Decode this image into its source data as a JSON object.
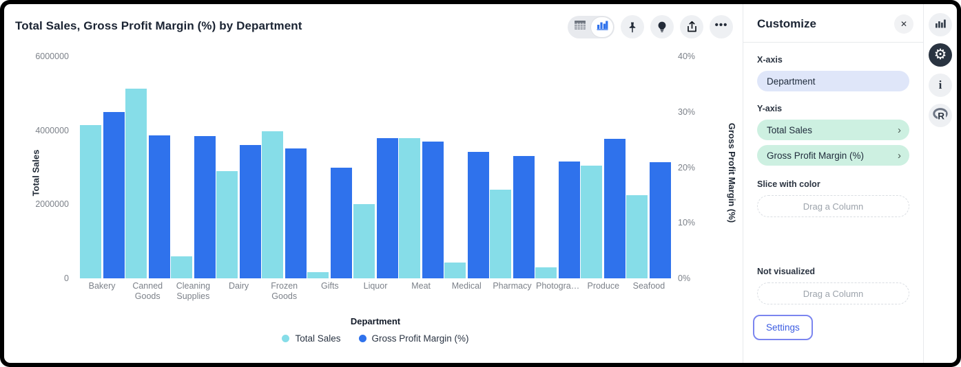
{
  "header": {
    "title": "Total Sales, Gross Profit Margin (%) by Department",
    "toolbar": {
      "toggle": [
        "table-view",
        "chart-view"
      ],
      "buttons": [
        "pin",
        "explore",
        "export",
        "more"
      ]
    }
  },
  "chart_data": {
    "type": "bar",
    "dual_axis": true,
    "title": "Total Sales, Gross Profit Margin (%) by Department",
    "xlabel": "Department",
    "categories": [
      "Bakery",
      "Canned Goods",
      "Cleaning Supplies",
      "Dairy",
      "Frozen Goods",
      "Gifts",
      "Liquor",
      "Meat",
      "Medical",
      "Pharmacy",
      "Photography",
      "Produce",
      "Seafood"
    ],
    "tick_labels": [
      "Bakery",
      "Canned Goods",
      "Cleaning Supplies",
      "Dairy",
      "Frozen Goods",
      "Gifts",
      "Liquor",
      "Meat",
      "Medical",
      "Pharmacy",
      "Photogra…",
      "Produce",
      "Seafood"
    ],
    "series": [
      {
        "name": "Total Sales",
        "axis": "left",
        "color": "#86dde8",
        "values": [
          4150000,
          5130000,
          600000,
          2900000,
          3970000,
          160000,
          2000000,
          3790000,
          420000,
          2390000,
          300000,
          3050000,
          2250000
        ]
      },
      {
        "name": "Gross Profit Margin (%)",
        "axis": "right",
        "color": "#2f72ec",
        "values": [
          30.0,
          25.8,
          25.7,
          24.0,
          23.4,
          20.0,
          25.3,
          24.6,
          22.8,
          22.1,
          21.1,
          25.1,
          20.9
        ]
      }
    ],
    "left_axis": {
      "label": "Total Sales",
      "min": 0,
      "max": 6000000,
      "ticks": [
        0,
        2000000,
        4000000,
        6000000
      ],
      "tick_labels": [
        "0",
        "2000000",
        "4000000",
        "6000000"
      ]
    },
    "right_axis": {
      "label": "Gross Profit Margin (%)",
      "min": 0,
      "max": 40,
      "ticks": [
        0,
        10,
        20,
        30,
        40
      ],
      "tick_labels": [
        "0%",
        "10%",
        "20%",
        "30%",
        "40%"
      ]
    },
    "grid": false,
    "legend_position": "bottom"
  },
  "panel": {
    "title": "Customize",
    "close_icon": "✕",
    "x_axis": {
      "label": "X-axis",
      "value": "Department"
    },
    "y_axis": {
      "label": "Y-axis",
      "pills": [
        {
          "label": "Total Sales"
        },
        {
          "label": "Gross Profit Margin (%)"
        }
      ],
      "chevron": "›"
    },
    "slice": {
      "label": "Slice with color",
      "placeholder": "Drag a Column"
    },
    "not_visualized": {
      "label": "Not visualized",
      "placeholder": "Drag a Column"
    },
    "settings_label": "Settings"
  },
  "rail": {
    "icons": [
      "chart-bars",
      "gear",
      "info",
      "r-logo"
    ],
    "gear_glyph": "⚙",
    "info_glyph": "i"
  },
  "colors": {
    "series_light": "#86dde8",
    "series_blue": "#2f72ec",
    "pill_lavender": "#dfe6f9",
    "pill_mint": "#cdf0e1",
    "settings_blue": "#3a5be2",
    "active_icon_bg": "#2a3441"
  },
  "ellipsis_glyph": "…"
}
